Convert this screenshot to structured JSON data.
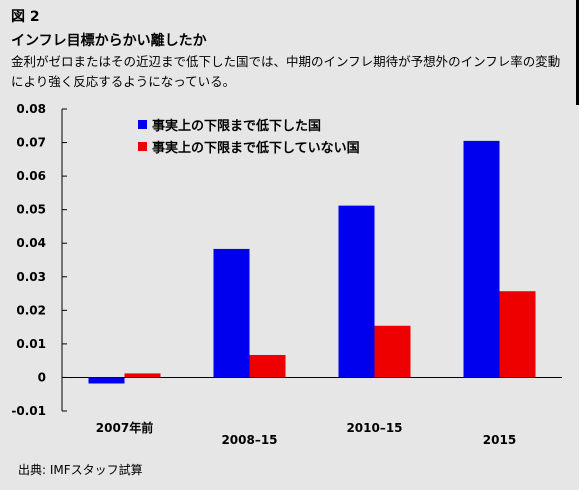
{
  "figure": {
    "label": "図 2",
    "title": "インフレ目標からかい離したか",
    "subtitle": "金利がゼロまたはその近辺まで低下した国では、中期のインフレ期待が予想外のインフレ率の変動により強く反応するようになっている。",
    "source": "出典: IMFスタッフ試算"
  },
  "colors": {
    "background": "#e6e6e6",
    "series_1": "#0000ee",
    "series_2": "#ee0000"
  },
  "chart_data": {
    "type": "bar",
    "categories": [
      "2007年前",
      "2008–15",
      "2010–15",
      "2015"
    ],
    "series": [
      {
        "name": "事実上の下限まで低下した国",
        "values": [
          -0.0018,
          0.0383,
          0.0512,
          0.0705
        ]
      },
      {
        "name": "事実上の下限まで低下していない国",
        "values": [
          0.0012,
          0.0067,
          0.0154,
          0.0257
        ]
      }
    ],
    "ylim": [
      -0.01,
      0.08
    ],
    "yticks": [
      "0.08",
      "0.07",
      "0.06",
      "0.05",
      "0.04",
      "0.03",
      "0.02",
      "0.01",
      "0",
      "-0.01"
    ],
    "grid": false,
    "legend": "top-left"
  }
}
